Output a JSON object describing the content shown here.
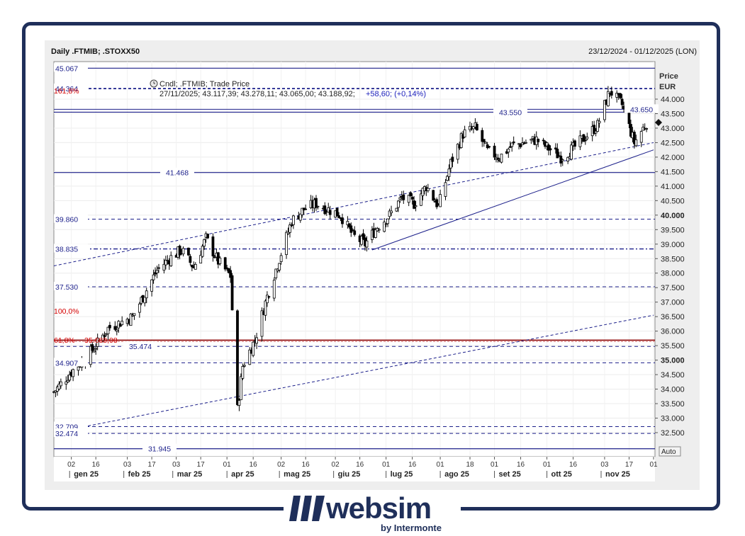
{
  "header": {
    "title": "Daily .FTMIB; .STOXX50",
    "date_range": "23/12/2024 - 01/12/2025 (LON)"
  },
  "legend": {
    "series": "Cndl; .FTMIB; Trade Price",
    "ohlc_line": "27/11/2025; 43.117,39; 43.278,11; 43.065,00; 43.188,92;",
    "change": "+58,60; (+0,14%)"
  },
  "axis": {
    "price_label": "Price",
    "currency": "EUR",
    "auto_button": "Auto",
    "y_ticks": [
      "44.000",
      "43.500",
      "43.000",
      "42.500",
      "42.000",
      "41.500",
      "41.000",
      "40.500",
      "40.000",
      "39.500",
      "39.000",
      "38.500",
      "38.000",
      "37.500",
      "37.000",
      "36.500",
      "36.000",
      "35.500",
      "35.000",
      "34.500",
      "34.000",
      "33.500",
      "33.000",
      "32.500"
    ],
    "day_ticks": [
      "02",
      "16",
      "03",
      "17",
      "03",
      "17",
      "01",
      "16",
      "02",
      "16",
      "02",
      "16",
      "01",
      "16",
      "01",
      "18",
      "01",
      "16",
      "01",
      "16",
      "03",
      "17",
      "01"
    ],
    "month_ticks": [
      "gen 25",
      "feb 25",
      "mar 25",
      "apr 25",
      "mag 25",
      "giu 25",
      "lug 25",
      "ago 25",
      "set 25",
      "ott 25",
      "nov 25"
    ]
  },
  "levels": [
    "45.067",
    "44.364",
    "43.550",
    "43.650",
    "41.468",
    "39.860",
    "38.835",
    "37.530",
    "35.474",
    "34.907",
    "32.709",
    "32.474",
    "31.945"
  ],
  "fib_labels": [
    "161,8%",
    "100,0%",
    "61,8%",
    "35.688,08"
  ],
  "logo": {
    "word": "websim",
    "sub": "by Intermonte"
  },
  "colors": {
    "navy": "#1b1f8a",
    "fib_red": "#d40000",
    "frame": "#1f2f5a"
  },
  "chart_data": {
    "type": "candlestick",
    "title": "Daily .FTMIB; .STOXX50",
    "ylabel": "Price EUR",
    "ylim": [
      31900,
      45600
    ],
    "x_range": [
      "2024-12-23",
      "2025-12-01"
    ],
    "horizontal_levels": [
      45067,
      44364,
      43550,
      43650,
      41468,
      39860,
      38835,
      37530,
      35688,
      35474,
      34907,
      32709,
      32474,
      31945
    ],
    "trendlines": [
      {
        "from": [
          "2024-12-23",
          38250
        ],
        "to": [
          "2025-12-01",
          42500
        ]
      },
      {
        "from": [
          "2024-12-23",
          32500
        ],
        "to": [
          "2025-12-01",
          36550
        ]
      },
      {
        "from": [
          "2025-06-23",
          38800
        ],
        "to": [
          "2025-12-01",
          42250
        ]
      }
    ],
    "last_bar": {
      "date": "27/11/2025",
      "open": 43117.39,
      "high": 43278.11,
      "low": 43065.0,
      "close": 43188.92,
      "change": 58.6,
      "change_pct": 0.14
    },
    "approx_closes": [
      [
        "2024-12-23",
        33900
      ],
      [
        "2025-01-02",
        34600
      ],
      [
        "2025-01-09",
        35000
      ],
      [
        "2025-01-16",
        35500
      ],
      [
        "2025-01-23",
        36100
      ],
      [
        "2025-01-30",
        36300
      ],
      [
        "2025-02-06",
        36500
      ],
      [
        "2025-02-13",
        37300
      ],
      [
        "2025-02-20",
        38100
      ],
      [
        "2025-02-27",
        38500
      ],
      [
        "2025-03-06",
        38800
      ],
      [
        "2025-03-13",
        38200
      ],
      [
        "2025-03-20",
        39200
      ],
      [
        "2025-03-27",
        38400
      ],
      [
        "2025-04-03",
        37900
      ],
      [
        "2025-04-07",
        33300
      ],
      [
        "2025-04-10",
        34800
      ],
      [
        "2025-04-17",
        35700
      ],
      [
        "2025-04-24",
        37200
      ],
      [
        "2025-05-01",
        38500
      ],
      [
        "2025-05-08",
        39800
      ],
      [
        "2025-05-15",
        40200
      ],
      [
        "2025-05-22",
        40400
      ],
      [
        "2025-05-29",
        40200
      ],
      [
        "2025-06-05",
        40000
      ],
      [
        "2025-06-12",
        39300
      ],
      [
        "2025-06-19",
        39000
      ],
      [
        "2025-06-26",
        39600
      ],
      [
        "2025-07-03",
        40000
      ],
      [
        "2025-07-10",
        40600
      ],
      [
        "2025-07-17",
        40400
      ],
      [
        "2025-07-24",
        41000
      ],
      [
        "2025-07-31",
        40300
      ],
      [
        "2025-08-07",
        41800
      ],
      [
        "2025-08-14",
        42800
      ],
      [
        "2025-08-21",
        43000
      ],
      [
        "2025-08-28",
        42200
      ],
      [
        "2025-09-04",
        42000
      ],
      [
        "2025-09-11",
        42400
      ],
      [
        "2025-09-18",
        42500
      ],
      [
        "2025-09-25",
        42600
      ],
      [
        "2025-10-02",
        42300
      ],
      [
        "2025-10-09",
        42000
      ],
      [
        "2025-10-16",
        42300
      ],
      [
        "2025-10-23",
        42700
      ],
      [
        "2025-10-30",
        43100
      ],
      [
        "2025-11-06",
        44300
      ],
      [
        "2025-11-13",
        43800
      ],
      [
        "2025-11-20",
        42500
      ],
      [
        "2025-11-27",
        43189
      ]
    ]
  }
}
